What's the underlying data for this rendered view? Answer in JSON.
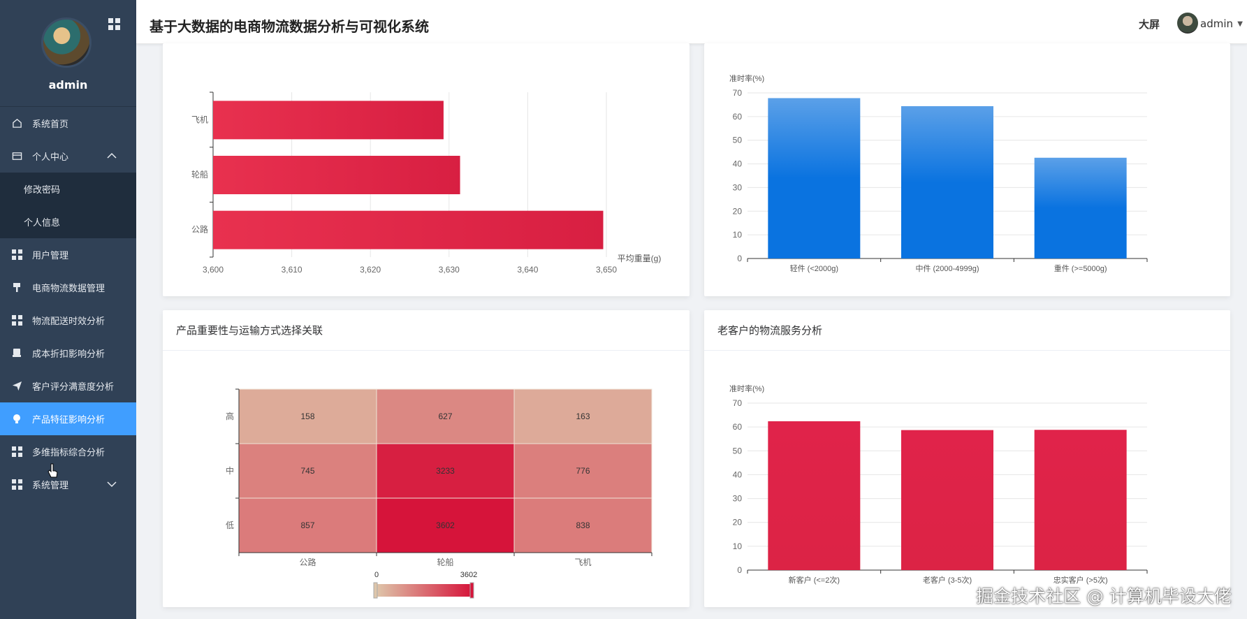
{
  "sidebar": {
    "username": "admin",
    "items": [
      {
        "label": "系统首页",
        "icon": "home-icon"
      },
      {
        "label": "个人中心",
        "icon": "wallet-icon"
      },
      {
        "label": "修改密码"
      },
      {
        "label": "个人信息"
      },
      {
        "label": "用户管理",
        "icon": "grid-icon"
      },
      {
        "label": "电商物流数据管理",
        "icon": "brush-icon"
      },
      {
        "label": "物流配送时效分析",
        "icon": "grid-icon"
      },
      {
        "label": "成本折扣影响分析",
        "icon": "printer-icon"
      },
      {
        "label": "客户评分满意度分析",
        "icon": "send-icon"
      },
      {
        "label": "产品特征影响分析",
        "icon": "lightbulb-icon"
      },
      {
        "label": "多维指标综合分析",
        "icon": "grid-icon"
      },
      {
        "label": "系统管理",
        "icon": "grid-icon"
      }
    ],
    "active_color": "#409eff"
  },
  "header": {
    "title": "基于大数据的电商物流数据分析与可视化系统",
    "bigscreen": "大屏",
    "user": "admin"
  },
  "cards": {
    "heatmap_title": "产品重要性与运输方式选择关联",
    "loyal_title": "老客户的物流服务分析"
  },
  "watermark": "掘金技术社区 @ 计算机毕设大佬",
  "chart_data": [
    {
      "type": "bar",
      "orientation": "horizontal",
      "categories": [
        "飞机",
        "轮船",
        "公路"
      ],
      "values": [
        3629.3,
        3631.4,
        3649.6
      ],
      "xlabel": "平均重量(g)",
      "xlim": [
        3600,
        3650
      ],
      "xticks": [
        "3,600",
        "3,610",
        "3,620",
        "3,630",
        "3,640",
        "3,650"
      ],
      "color": "#e0284a",
      "grid": true
    },
    {
      "type": "bar",
      "categories": [
        "轻件 (<2000g)",
        "中件 (2000-4999g)",
        "重件 (>=5000g)"
      ],
      "values": [
        67.8,
        64.4,
        42.6
      ],
      "ylabel": "准时率(%)",
      "ylim": [
        0,
        70
      ],
      "yticks": [
        0,
        10,
        20,
        30,
        40,
        50,
        60,
        70
      ],
      "color": "#1f7ee0",
      "grid": true
    },
    {
      "type": "heatmap",
      "x": [
        "公路",
        "轮船",
        "飞机"
      ],
      "y": [
        "高",
        "中",
        "低"
      ],
      "values": [
        [
          158,
          627,
          163
        ],
        [
          745,
          3233,
          776
        ],
        [
          857,
          3602,
          838
        ]
      ],
      "scale_min": 0,
      "scale_max": 3602,
      "scale_labels": [
        "0",
        "3602"
      ],
      "color_low": "#dec6aa",
      "color_high": "#d6143a"
    },
    {
      "type": "bar",
      "categories": [
        "新客户 (<=2次)",
        "老客户 (3-5次)",
        "忠实客户 (>5次)"
      ],
      "values": [
        62.4,
        58.7,
        58.8
      ],
      "ylabel": "准时率(%)",
      "ylim": [
        0,
        70
      ],
      "yticks": [
        0,
        10,
        20,
        30,
        40,
        50,
        60,
        70
      ],
      "color": "#e0234a",
      "grid": true
    }
  ]
}
